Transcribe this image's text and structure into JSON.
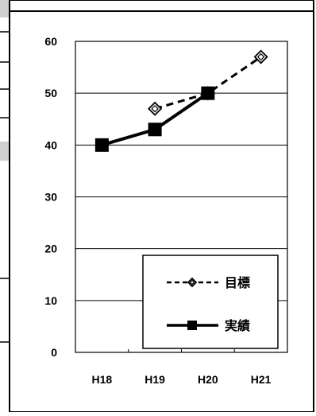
{
  "chart_data": {
    "type": "line",
    "categories": [
      "H18",
      "H19",
      "H20",
      "H21"
    ],
    "series": [
      {
        "name": "目標",
        "values": [
          null,
          47,
          50,
          57
        ],
        "style": "dashed",
        "marker": "diamond-open",
        "color": "#000000"
      },
      {
        "name": "実績",
        "values": [
          40,
          43,
          50,
          null
        ],
        "style": "solid",
        "marker": "square-filled",
        "color": "#000000"
      }
    ],
    "y_ticks": [
      "0",
      "10",
      "20",
      "30",
      "40",
      "50",
      "60"
    ],
    "ylim": [
      0,
      60
    ],
    "grid": true,
    "legend_position": "bottom-right",
    "title": "",
    "xlabel": "",
    "ylabel": ""
  }
}
